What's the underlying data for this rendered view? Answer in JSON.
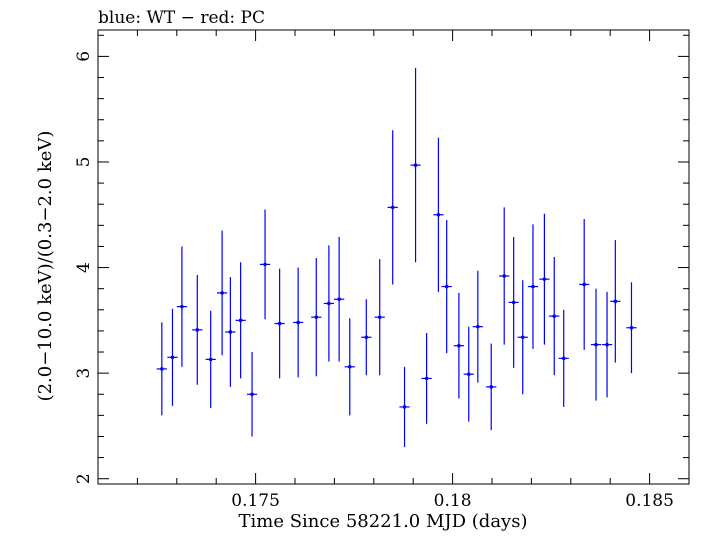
{
  "chart_data": {
    "type": "scatter",
    "title": "blue: WT − red: PC",
    "xlabel": "Time Since 58221.0 MJD (days)",
    "ylabel": "(2.0−10.0 keV)/(0.3−2.0 keV)",
    "xlim": [
      0.171,
      0.186
    ],
    "ylim": [
      1.95,
      6.25
    ],
    "x_ticks": [
      0.175,
      0.18,
      0.185
    ],
    "x_tick_labels": [
      "0.175",
      "0.18",
      "0.185"
    ],
    "y_ticks": [
      2,
      3,
      4,
      5,
      6
    ],
    "y_tick_labels": [
      "2",
      "3",
      "4",
      "5",
      "6"
    ],
    "grid": false,
    "series": [
      {
        "color": "#0000ff",
        "x_err": 0.00013,
        "points": [
          {
            "x": 0.17262,
            "y": 3.04,
            "yerr": 0.44
          },
          {
            "x": 0.17289,
            "y": 3.15,
            "yerr": 0.46
          },
          {
            "x": 0.17313,
            "y": 3.63,
            "yerr": 0.57
          },
          {
            "x": 0.17352,
            "y": 3.41,
            "yerr": 0.52
          },
          {
            "x": 0.17386,
            "y": 3.13,
            "yerr": 0.46
          },
          {
            "x": 0.17415,
            "y": 3.76,
            "yerr": 0.59
          },
          {
            "x": 0.17436,
            "y": 3.39,
            "yerr": 0.52
          },
          {
            "x": 0.17462,
            "y": 3.5,
            "yerr": 0.55
          },
          {
            "x": 0.17491,
            "y": 2.8,
            "yerr": 0.4
          },
          {
            "x": 0.17524,
            "y": 4.03,
            "yerr": 0.52
          },
          {
            "x": 0.17561,
            "y": 3.47,
            "yerr": 0.52
          },
          {
            "x": 0.17608,
            "y": 3.48,
            "yerr": 0.52
          },
          {
            "x": 0.17654,
            "y": 3.53,
            "yerr": 0.56
          },
          {
            "x": 0.17686,
            "y": 3.66,
            "yerr": 0.55
          },
          {
            "x": 0.17712,
            "y": 3.7,
            "yerr": 0.59
          },
          {
            "x": 0.17739,
            "y": 3.06,
            "yerr": 0.46
          },
          {
            "x": 0.17781,
            "y": 3.34,
            "yerr": 0.36
          },
          {
            "x": 0.17815,
            "y": 3.53,
            "yerr": 0.55
          },
          {
            "x": 0.17848,
            "y": 4.57,
            "yerr": 0.73
          },
          {
            "x": 0.17878,
            "y": 2.68,
            "yerr": 0.38
          },
          {
            "x": 0.17906,
            "y": 4.97,
            "yerr": 0.92
          },
          {
            "x": 0.17934,
            "y": 2.95,
            "yerr": 0.43
          },
          {
            "x": 0.17964,
            "y": 4.5,
            "yerr": 0.73
          },
          {
            "x": 0.17985,
            "y": 3.82,
            "yerr": 0.63
          },
          {
            "x": 0.18016,
            "y": 3.26,
            "yerr": 0.5
          },
          {
            "x": 0.18041,
            "y": 2.99,
            "yerr": 0.45
          },
          {
            "x": 0.18064,
            "y": 3.44,
            "yerr": 0.53
          },
          {
            "x": 0.18098,
            "y": 2.87,
            "yerr": 0.41
          },
          {
            "x": 0.18131,
            "y": 3.92,
            "yerr": 0.65
          },
          {
            "x": 0.18155,
            "y": 3.67,
            "yerr": 0.62
          },
          {
            "x": 0.18178,
            "y": 3.34,
            "yerr": 0.54
          },
          {
            "x": 0.18204,
            "y": 3.82,
            "yerr": 0.59
          },
          {
            "x": 0.18233,
            "y": 3.89,
            "yerr": 0.62
          },
          {
            "x": 0.18258,
            "y": 3.54,
            "yerr": 0.56
          },
          {
            "x": 0.18282,
            "y": 3.14,
            "yerr": 0.46
          },
          {
            "x": 0.18334,
            "y": 3.84,
            "yerr": 0.62
          },
          {
            "x": 0.18364,
            "y": 3.27,
            "yerr": 0.53
          },
          {
            "x": 0.18392,
            "y": 3.27,
            "yerr": 0.5
          },
          {
            "x": 0.18413,
            "y": 3.68,
            "yerr": 0.58
          },
          {
            "x": 0.18454,
            "y": 3.43,
            "yerr": 0.43
          }
        ]
      }
    ]
  }
}
